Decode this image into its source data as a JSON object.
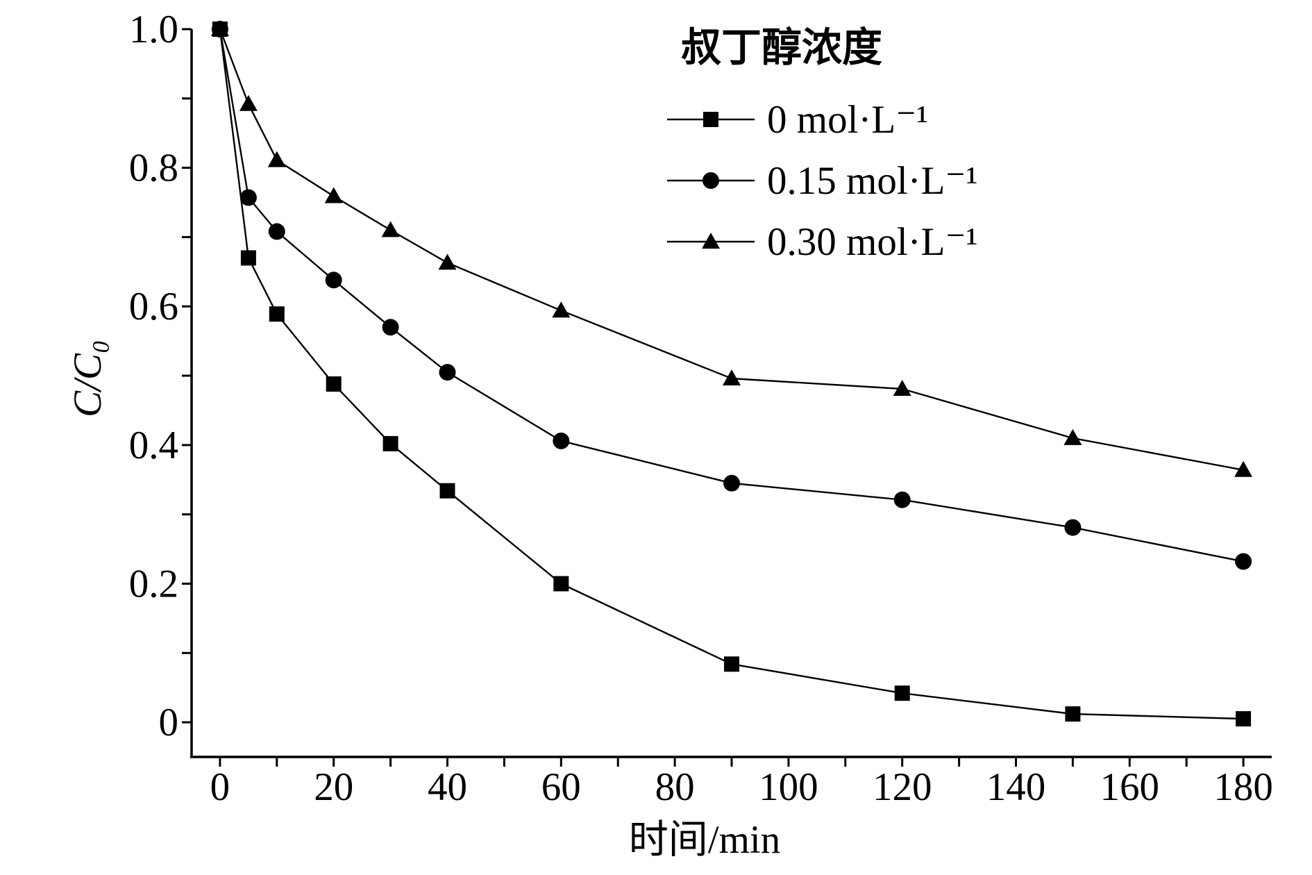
{
  "chart_data": {
    "type": "line",
    "xlabel": "时间/min",
    "ylabel": "C/C₀",
    "xlim": [
      -5,
      185
    ],
    "ylim": [
      -0.05,
      1.0
    ],
    "xticks": [
      0,
      20,
      40,
      60,
      80,
      100,
      120,
      140,
      160,
      180
    ],
    "xtick_labels": [
      "0",
      "20",
      "40",
      "60",
      "80",
      "100",
      "120",
      "140",
      "160",
      "180"
    ],
    "yticks": [
      0,
      0.2,
      0.4,
      0.6,
      0.8,
      1.0
    ],
    "ytick_labels": [
      "0",
      "0.2",
      "0.4",
      "0.6",
      "0.8",
      "1.0"
    ],
    "minor_ticks": {
      "x": 10,
      "y": 0.1
    },
    "grid": false,
    "legend": {
      "title": "叔丁醇浓度",
      "position": "upper-right"
    },
    "x": [
      0,
      5,
      10,
      20,
      30,
      40,
      60,
      90,
      120,
      150,
      180
    ],
    "series": [
      {
        "name": "0 mol·L⁻¹",
        "marker": "square",
        "color": "#000000",
        "values": [
          1.0,
          0.67,
          0.589,
          0.488,
          0.402,
          0.334,
          0.2,
          0.084,
          0.042,
          0.012,
          0.005
        ]
      },
      {
        "name": "0.15 mol·L⁻¹",
        "marker": "circle",
        "color": "#000000",
        "values": [
          1.0,
          0.757,
          0.708,
          0.638,
          0.57,
          0.505,
          0.406,
          0.345,
          0.321,
          0.281,
          0.232
        ]
      },
      {
        "name": "0.30 mol·L⁻¹",
        "marker": "triangle",
        "color": "#000000",
        "values": [
          1.0,
          0.892,
          0.811,
          0.759,
          0.71,
          0.663,
          0.594,
          0.496,
          0.481,
          0.41,
          0.364
        ]
      }
    ]
  }
}
